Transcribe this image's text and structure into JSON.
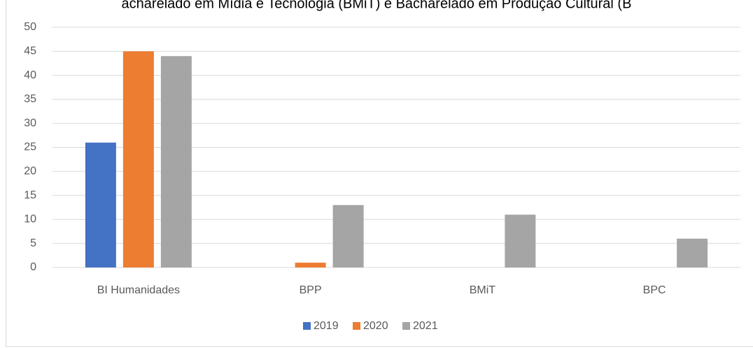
{
  "chart_data": {
    "type": "bar",
    "title": "acharelado em Mídia e Tecnologia (BMiT) e Bacharelado em Produção Cultural (B",
    "categories": [
      "BI Humanidades",
      "BPP",
      "BMiT",
      "BPC"
    ],
    "series": [
      {
        "name": "2019",
        "color": "#4472c4",
        "values": [
          26,
          0,
          0,
          0
        ]
      },
      {
        "name": "2020",
        "color": "#ed7d31",
        "values": [
          45,
          1,
          0,
          0
        ]
      },
      {
        "name": "2021",
        "color": "#a5a5a5",
        "values": [
          44,
          13,
          11,
          6
        ]
      }
    ],
    "ylim": [
      0,
      50
    ],
    "yticks": [
      0,
      5,
      10,
      15,
      20,
      25,
      30,
      35,
      40,
      45,
      50
    ],
    "grid": true,
    "legend": "bottom"
  }
}
